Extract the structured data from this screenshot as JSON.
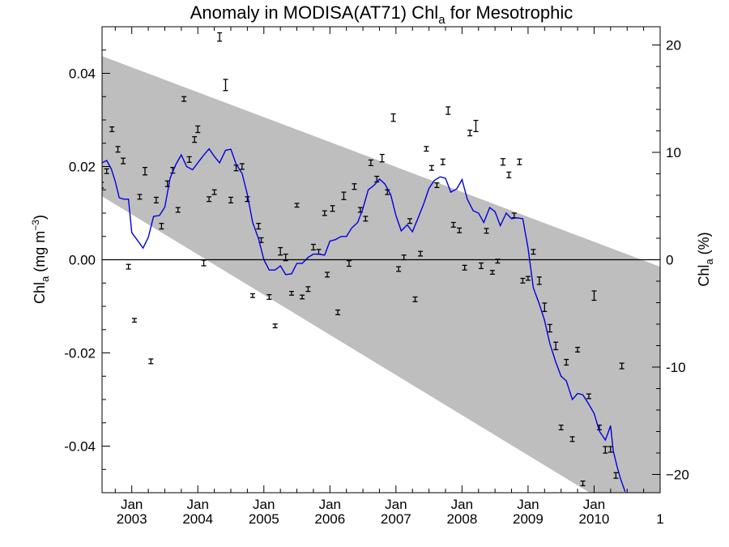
{
  "chart_data": {
    "type": "scatter",
    "title": "Anomaly in MODISA(AT71) Chl",
    "title_sub": "a",
    "title_suffix": " for Mesotrophic",
    "ylabel_left_main": "Chl",
    "ylabel_left_sub": "a",
    "ylabel_left_unit": " (mg m",
    "ylabel_left_sup": "−3",
    "ylabel_left_close": ")",
    "ylabel_right_main": "Chl",
    "ylabel_right_sub": "a",
    "ylabel_right_unit": " (%)",
    "xlim": [
      2002.55,
      2011.0
    ],
    "ylim_left": [
      -0.05,
      0.05
    ],
    "ylim_right": [
      -21.7,
      21.7
    ],
    "x_tick_labels": [
      {
        "x": 2003.0,
        "month": "Jan",
        "year": "2003"
      },
      {
        "x": 2004.0,
        "month": "Jan",
        "year": "2004"
      },
      {
        "x": 2005.0,
        "month": "Jan",
        "year": "2005"
      },
      {
        "x": 2006.0,
        "month": "Jan",
        "year": "2006"
      },
      {
        "x": 2007.0,
        "month": "Jan",
        "year": "2007"
      },
      {
        "x": 2008.0,
        "month": "Jan",
        "year": "2008"
      },
      {
        "x": 2009.0,
        "month": "Jan",
        "year": "2009"
      },
      {
        "x": 2010.0,
        "month": "Jan",
        "year": "2010"
      },
      {
        "x": 2011.0,
        "month": "",
        "year": "1"
      }
    ],
    "y_ticks_left": [
      {
        "v": 0.04,
        "label": "0.04"
      },
      {
        "v": 0.02,
        "label": "0.02"
      },
      {
        "v": 0.0,
        "label": "0.00"
      },
      {
        "v": -0.02,
        "label": "-0.02"
      },
      {
        "v": -0.04,
        "label": "-0.04"
      }
    ],
    "y_ticks_right": [
      {
        "v": 20,
        "label": "20"
      },
      {
        "v": 10,
        "label": "10"
      },
      {
        "v": 0,
        "label": "0"
      },
      {
        "v": -10,
        "label": "-10"
      },
      {
        "v": -20,
        "label": "−20"
      }
    ],
    "zero_line": 0.0,
    "band": {
      "upper": [
        [
          2002.55,
          0.0437
        ],
        [
          2011.0,
          -0.0015
        ]
      ],
      "lower": [
        [
          2002.55,
          0.0136
        ],
        [
          2011.0,
          -0.0592
        ]
      ]
    },
    "colors": {
      "band": "#bebebe",
      "line": "#0000dd",
      "points": "#000000",
      "zero": "#000000"
    },
    "points": [
      {
        "x": 2002.54,
        "y": 0.016,
        "e": 0.0006
      },
      {
        "x": 2002.62,
        "y": 0.019,
        "e": 0.0005
      },
      {
        "x": 2002.7,
        "y": 0.028,
        "e": 0.0005
      },
      {
        "x": 2002.79,
        "y": 0.0237,
        "e": 0.0006
      },
      {
        "x": 2002.87,
        "y": 0.0212,
        "e": 0.0006
      },
      {
        "x": 2002.95,
        "y": -0.0015,
        "e": 0.0005
      },
      {
        "x": 2003.04,
        "y": -0.013,
        "e": 0.0004
      },
      {
        "x": 2003.12,
        "y": 0.0135,
        "e": 0.0005
      },
      {
        "x": 2003.2,
        "y": 0.019,
        "e": 0.0008
      },
      {
        "x": 2003.29,
        "y": -0.0218,
        "e": 0.0005
      },
      {
        "x": 2003.37,
        "y": 0.0128,
        "e": 0.0006
      },
      {
        "x": 2003.45,
        "y": 0.0072,
        "e": 0.0006
      },
      {
        "x": 2003.54,
        "y": 0.0163,
        "e": 0.0006
      },
      {
        "x": 2003.62,
        "y": 0.0192,
        "e": 0.0006
      },
      {
        "x": 2003.7,
        "y": 0.0107,
        "e": 0.0005
      },
      {
        "x": 2003.79,
        "y": 0.0345,
        "e": 0.0005
      },
      {
        "x": 2003.87,
        "y": 0.0215,
        "e": 0.0006
      },
      {
        "x": 2003.95,
        "y": 0.0258,
        "e": 0.0006
      },
      {
        "x": 2004.0,
        "y": 0.028,
        "e": 0.0007
      },
      {
        "x": 2004.09,
        "y": -0.0007,
        "e": 0.0006
      },
      {
        "x": 2004.17,
        "y": 0.013,
        "e": 0.0005
      },
      {
        "x": 2004.25,
        "y": 0.0145,
        "e": 0.0005
      },
      {
        "x": 2004.33,
        "y": 0.0478,
        "e": 0.0009
      },
      {
        "x": 2004.42,
        "y": 0.0375,
        "e": 0.0012
      },
      {
        "x": 2004.5,
        "y": 0.0128,
        "e": 0.0006
      },
      {
        "x": 2004.58,
        "y": 0.0197,
        "e": 0.0006
      },
      {
        "x": 2004.67,
        "y": 0.02,
        "e": 0.0006
      },
      {
        "x": 2004.75,
        "y": 0.013,
        "e": 0.0005
      },
      {
        "x": 2004.83,
        "y": -0.0077,
        "e": 0.0004
      },
      {
        "x": 2004.92,
        "y": 0.0072,
        "e": 0.0006
      },
      {
        "x": 2004.96,
        "y": 0.0042,
        "e": 0.0005
      },
      {
        "x": 2005.08,
        "y": -0.008,
        "e": 0.0005
      },
      {
        "x": 2005.17,
        "y": -0.0142,
        "e": 0.0004
      },
      {
        "x": 2005.25,
        "y": 0.0018,
        "e": 0.0008
      },
      {
        "x": 2005.33,
        "y": 0.0005,
        "e": 0.0007
      },
      {
        "x": 2005.42,
        "y": -0.0072,
        "e": 0.0004
      },
      {
        "x": 2005.5,
        "y": 0.0117,
        "e": 0.0004
      },
      {
        "x": 2005.58,
        "y": -0.008,
        "e": 0.0004
      },
      {
        "x": 2005.67,
        "y": -0.0063,
        "e": 0.0005
      },
      {
        "x": 2005.75,
        "y": 0.0027,
        "e": 0.0006
      },
      {
        "x": 2005.83,
        "y": 0.0017,
        "e": 0.0005
      },
      {
        "x": 2005.92,
        "y": 0.01,
        "e": 0.0005
      },
      {
        "x": 2005.96,
        "y": -0.0032,
        "e": 0.0005
      },
      {
        "x": 2006.04,
        "y": 0.011,
        "e": 0.0006
      },
      {
        "x": 2006.12,
        "y": -0.0113,
        "e": 0.0005
      },
      {
        "x": 2006.21,
        "y": 0.0137,
        "e": 0.0008
      },
      {
        "x": 2006.29,
        "y": -0.0008,
        "e": 0.0006
      },
      {
        "x": 2006.37,
        "y": 0.0157,
        "e": 0.0006
      },
      {
        "x": 2006.46,
        "y": 0.0107,
        "e": 0.0005
      },
      {
        "x": 2006.54,
        "y": 0.0088,
        "e": 0.0005
      },
      {
        "x": 2006.62,
        "y": 0.0208,
        "e": 0.0006
      },
      {
        "x": 2006.71,
        "y": 0.0173,
        "e": 0.0006
      },
      {
        "x": 2006.79,
        "y": 0.0218,
        "e": 0.0008
      },
      {
        "x": 2006.87,
        "y": 0.0145,
        "e": 0.0005
      },
      {
        "x": 2006.96,
        "y": 0.0305,
        "e": 0.0008
      },
      {
        "x": 2007.04,
        "y": -0.002,
        "e": 0.0005
      },
      {
        "x": 2007.12,
        "y": 0.0005,
        "e": 0.0005
      },
      {
        "x": 2007.21,
        "y": 0.0083,
        "e": 0.0005
      },
      {
        "x": 2007.29,
        "y": -0.0085,
        "e": 0.0005
      },
      {
        "x": 2007.37,
        "y": 0.0013,
        "e": 0.0005
      },
      {
        "x": 2007.46,
        "y": 0.0238,
        "e": 0.0005
      },
      {
        "x": 2007.54,
        "y": 0.0197,
        "e": 0.0005
      },
      {
        "x": 2007.62,
        "y": 0.016,
        "e": 0.0005
      },
      {
        "x": 2007.71,
        "y": 0.021,
        "e": 0.0006
      },
      {
        "x": 2007.79,
        "y": 0.032,
        "e": 0.0008
      },
      {
        "x": 2007.87,
        "y": 0.0075,
        "e": 0.0005
      },
      {
        "x": 2007.96,
        "y": 0.0063,
        "e": 0.0005
      },
      {
        "x": 2008.04,
        "y": -0.0017,
        "e": 0.0005
      },
      {
        "x": 2008.12,
        "y": 0.0272,
        "e": 0.0006
      },
      {
        "x": 2008.21,
        "y": 0.0287,
        "e": 0.0012
      },
      {
        "x": 2008.29,
        "y": -0.0013,
        "e": 0.0006
      },
      {
        "x": 2008.37,
        "y": 0.0062,
        "e": 0.0005
      },
      {
        "x": 2008.46,
        "y": -0.0027,
        "e": 0.0004
      },
      {
        "x": 2008.54,
        "y": -0.0003,
        "e": 0.0004
      },
      {
        "x": 2008.62,
        "y": 0.021,
        "e": 0.0007
      },
      {
        "x": 2008.71,
        "y": 0.0182,
        "e": 0.0006
      },
      {
        "x": 2008.79,
        "y": 0.0095,
        "e": 0.0005
      },
      {
        "x": 2008.87,
        "y": 0.021,
        "e": 0.0006
      },
      {
        "x": 2008.92,
        "y": -0.0045,
        "e": 0.0005
      },
      {
        "x": 2009.0,
        "y": -0.004,
        "e": 0.0004
      },
      {
        "x": 2009.08,
        "y": 0.0017,
        "e": 0.0005
      },
      {
        "x": 2009.17,
        "y": -0.0045,
        "e": 0.0008
      },
      {
        "x": 2009.25,
        "y": -0.0102,
        "e": 0.0009
      },
      {
        "x": 2009.33,
        "y": -0.0147,
        "e": 0.0008
      },
      {
        "x": 2009.42,
        "y": -0.0185,
        "e": 0.0008
      },
      {
        "x": 2009.5,
        "y": -0.036,
        "e": 0.0005
      },
      {
        "x": 2009.58,
        "y": -0.022,
        "e": 0.0006
      },
      {
        "x": 2009.67,
        "y": -0.0385,
        "e": 0.0005
      },
      {
        "x": 2009.75,
        "y": -0.0193,
        "e": 0.0005
      },
      {
        "x": 2009.83,
        "y": -0.048,
        "e": 0.0005
      },
      {
        "x": 2009.92,
        "y": -0.0293,
        "e": 0.0005
      },
      {
        "x": 2010.0,
        "y": -0.0077,
        "e": 0.001
      },
      {
        "x": 2010.08,
        "y": -0.036,
        "e": 0.0005
      },
      {
        "x": 2010.17,
        "y": -0.0408,
        "e": 0.0007
      },
      {
        "x": 2010.25,
        "y": -0.0407,
        "e": 0.0006
      },
      {
        "x": 2010.33,
        "y": -0.0463,
        "e": 0.0006
      },
      {
        "x": 2010.42,
        "y": -0.0228,
        "e": 0.0006
      }
    ],
    "smooth_line": [
      [
        2002.55,
        0.0208
      ],
      [
        2002.62,
        0.0213
      ],
      [
        2002.69,
        0.0195
      ],
      [
        2002.75,
        0.0168
      ],
      [
        2002.81,
        0.0133
      ],
      [
        2002.88,
        0.013
      ],
      [
        2002.95,
        0.013
      ],
      [
        2003.0,
        0.0058
      ],
      [
        2003.08,
        0.0043
      ],
      [
        2003.17,
        0.0025
      ],
      [
        2003.25,
        0.0048
      ],
      [
        2003.33,
        0.0093
      ],
      [
        2003.42,
        0.0095
      ],
      [
        2003.5,
        0.0113
      ],
      [
        2003.58,
        0.0175
      ],
      [
        2003.67,
        0.0205
      ],
      [
        2003.75,
        0.0225
      ],
      [
        2003.83,
        0.02
      ],
      [
        2003.92,
        0.0193
      ],
      [
        2004.0,
        0.0208
      ],
      [
        2004.08,
        0.0223
      ],
      [
        2004.17,
        0.0238
      ],
      [
        2004.25,
        0.0222
      ],
      [
        2004.33,
        0.0208
      ],
      [
        2004.42,
        0.0235
      ],
      [
        2004.5,
        0.0237
      ],
      [
        2004.58,
        0.0205
      ],
      [
        2004.67,
        0.0185
      ],
      [
        2004.75,
        0.014
      ],
      [
        2004.83,
        0.008
      ],
      [
        2004.92,
        0.0045
      ],
      [
        2005.0,
        0.0
      ],
      [
        2005.08,
        -0.0022
      ],
      [
        2005.17,
        -0.0022
      ],
      [
        2005.25,
        -0.0013
      ],
      [
        2005.33,
        -0.0032
      ],
      [
        2005.42,
        -0.003
      ],
      [
        2005.5,
        -0.0008
      ],
      [
        2005.58,
        -0.0008
      ],
      [
        2005.67,
        0.0005
      ],
      [
        2005.75,
        0.0012
      ],
      [
        2005.83,
        0.0012
      ],
      [
        2005.92,
        0.001
      ],
      [
        2006.0,
        0.004
      ],
      [
        2006.08,
        0.0043
      ],
      [
        2006.17,
        0.005
      ],
      [
        2006.25,
        0.005
      ],
      [
        2006.33,
        0.0068
      ],
      [
        2006.42,
        0.008
      ],
      [
        2006.5,
        0.011
      ],
      [
        2006.58,
        0.015
      ],
      [
        2006.67,
        0.016
      ],
      [
        2006.75,
        0.0173
      ],
      [
        2006.83,
        0.0163
      ],
      [
        2006.92,
        0.014
      ],
      [
        2007.0,
        0.0095
      ],
      [
        2007.08,
        0.0062
      ],
      [
        2007.17,
        0.0075
      ],
      [
        2007.25,
        0.006
      ],
      [
        2007.33,
        0.0088
      ],
      [
        2007.42,
        0.012
      ],
      [
        2007.5,
        0.0153
      ],
      [
        2007.58,
        0.017
      ],
      [
        2007.67,
        0.0178
      ],
      [
        2007.75,
        0.0175
      ],
      [
        2007.83,
        0.0145
      ],
      [
        2007.92,
        0.0152
      ],
      [
        2008.0,
        0.0172
      ],
      [
        2008.08,
        0.013
      ],
      [
        2008.17,
        0.0105
      ],
      [
        2008.25,
        0.01
      ],
      [
        2008.33,
        0.008
      ],
      [
        2008.42,
        0.0112
      ],
      [
        2008.5,
        0.0103
      ],
      [
        2008.58,
        0.0073
      ],
      [
        2008.67,
        0.01
      ],
      [
        2008.75,
        0.0088
      ],
      [
        2008.83,
        0.009
      ],
      [
        2008.92,
        0.0088
      ],
      [
        2009.0,
        0.0025
      ],
      [
        2009.08,
        -0.006
      ],
      [
        2009.17,
        -0.0095
      ],
      [
        2009.25,
        -0.013
      ],
      [
        2009.33,
        -0.018
      ],
      [
        2009.42,
        -0.022
      ],
      [
        2009.5,
        -0.025
      ],
      [
        2009.58,
        -0.026
      ],
      [
        2009.67,
        -0.03
      ],
      [
        2009.75,
        -0.0287
      ],
      [
        2009.83,
        -0.029
      ],
      [
        2009.92,
        -0.031
      ],
      [
        2010.0,
        -0.033
      ],
      [
        2010.08,
        -0.0368
      ],
      [
        2010.17,
        -0.0387
      ],
      [
        2010.21,
        -0.0372
      ],
      [
        2010.25,
        -0.0356
      ],
      [
        2010.29,
        -0.041
      ],
      [
        2010.35,
        -0.0445
      ],
      [
        2010.4,
        -0.047
      ],
      [
        2010.47,
        -0.0498
      ]
    ]
  }
}
